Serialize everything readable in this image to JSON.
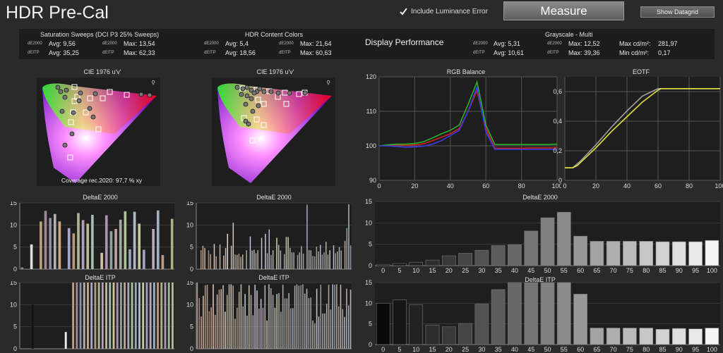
{
  "app": {
    "title": "HDR Pre-Cal"
  },
  "controls": {
    "include_luminance_label": "Include Luminance Error",
    "measure_label": "Measure",
    "show_datagrid_label": "Show Datagrid"
  },
  "stats": {
    "saturation": {
      "title": "Saturation Sweeps (DCI P3 25% Sweeps)",
      "de2000_label": "dE2000",
      "deitp_label": "dEITP",
      "avg_de2000": "Avg: 9,56",
      "max_de2000": "Max: 13,54",
      "avg_deitp": "Avg: 35,25",
      "max_deitp": "Max: 62,33"
    },
    "hdr": {
      "title": "HDR Content Colors",
      "de2000_label": "dE2000",
      "deitp_label": "dEITP",
      "avg_de2000": "Avg: 5,4",
      "max_de2000": "Max: 21,64",
      "avg_deitp": "Avg: 18,56",
      "max_deitp": "Max: 60,63"
    },
    "display_performance": "Display Performance",
    "grayscale": {
      "title": "Grayscale - Multi",
      "de2000_label": "dE2000",
      "deitp_label": "dEITP",
      "avg_de2000": "Avg: 5,31",
      "max_de2000": "Max: 12,52",
      "avg_deitp": "Avg: 10,61",
      "max_deitp": "Max: 39,36",
      "max_cdm_label": "Max cd/m²:",
      "max_cdm": "281,97",
      "min_cdm_label": "Min cd/m²:",
      "min_cdm": "0,17"
    }
  },
  "cie": {
    "title_left": "CIE 1976 u'v'",
    "title_right": "CIE 1976 u'v'",
    "coverage": "Coverage rec.2020:  97,7 % xy"
  },
  "panels": {
    "rgb_balance": "RGB Balance",
    "eotf": "EOTF",
    "deltae2000": "DeltaE 2000",
    "deltaeitp": "DeltaE ITP"
  },
  "chart_data": [
    {
      "type": "line",
      "title": "RGB Balance",
      "xlim": [
        0,
        100
      ],
      "ylim": [
        90,
        120
      ],
      "yticks": [
        90,
        100,
        110,
        120
      ],
      "xticks": [
        0,
        20,
        40,
        60,
        80,
        100
      ],
      "x": [
        0,
        5,
        10,
        15,
        20,
        25,
        30,
        35,
        40,
        45,
        50,
        55,
        60,
        65,
        70,
        75,
        80,
        85,
        90,
        95,
        100
      ],
      "series": [
        {
          "color": "#d22020",
          "values": [
            100,
            100.2,
            100.3,
            100.2,
            100.3,
            100.6,
            101.5,
            102.5,
            103.5,
            105,
            110,
            116,
            105,
            99.3,
            99.3,
            99.3,
            99.3,
            99.4,
            99.4,
            99.4,
            99.5
          ]
        },
        {
          "color": "#28b028",
          "values": [
            100,
            100.3,
            100.5,
            100.5,
            100.7,
            101.2,
            102.3,
            103.5,
            104.5,
            106,
            112,
            118.5,
            106,
            100.4,
            100.4,
            100.4,
            100.4,
            100.4,
            100.4,
            100.4,
            100.5
          ]
        },
        {
          "color": "#3a3ae6",
          "values": [
            100,
            100,
            99.8,
            99.6,
            99.7,
            99.9,
            100.5,
            101.5,
            103,
            104.5,
            110,
            117,
            104,
            99,
            99,
            99,
            99,
            99,
            99,
            99,
            99
          ]
        }
      ]
    },
    {
      "type": "line",
      "title": "EOTF",
      "xlim": [
        0,
        100
      ],
      "ylim": [
        0,
        0.7
      ],
      "yticks": [
        0,
        0.2,
        0.4,
        0.6
      ],
      "ytick_labels": [
        "0",
        "0,2",
        "0,4",
        "0,6"
      ],
      "xticks": [
        0,
        20,
        40,
        60,
        80,
        100
      ],
      "series": [
        {
          "color": "#a0a0a0",
          "x": [
            0,
            5,
            10,
            20,
            30,
            40,
            50,
            60,
            62,
            100
          ],
          "values": [
            0.085,
            0.085,
            0.13,
            0.24,
            0.36,
            0.47,
            0.57,
            0.62,
            0.62,
            0.62
          ]
        },
        {
          "color": "#e8e040",
          "x": [
            0,
            5,
            8,
            10,
            20,
            30,
            40,
            50,
            60,
            62,
            100
          ],
          "values": [
            0.085,
            0.085,
            0.1,
            0.12,
            0.22,
            0.33,
            0.43,
            0.53,
            0.61,
            0.62,
            0.62
          ]
        }
      ]
    },
    {
      "type": "bar",
      "title": "DeltaE 2000",
      "ylim": [
        0,
        15
      ],
      "yticks": [
        0,
        5,
        10,
        15
      ],
      "categories": [
        "0",
        "5",
        "10",
        "15",
        "20",
        "25",
        "30",
        "35",
        "40",
        "45",
        "50",
        "55",
        "60",
        "65",
        "70",
        "75",
        "80",
        "85",
        "90",
        "95",
        "100"
      ],
      "values": [
        0.3,
        0.5,
        0.8,
        1.3,
        2.3,
        2.9,
        3.6,
        4.7,
        4.9,
        8.1,
        11.2,
        12.5,
        6.9,
        5.7,
        5.7,
        5.7,
        5.7,
        5.6,
        5.6,
        5.6,
        5.9
      ]
    },
    {
      "type": "bar",
      "title": "DeltaE ITP",
      "ylim": [
        0,
        15
      ],
      "yticks": [
        0,
        5,
        10,
        15
      ],
      "categories": [
        "0",
        "5",
        "10",
        "15",
        "20",
        "25",
        "30",
        "35",
        "40",
        "45",
        "50",
        "55",
        "60",
        "65",
        "70",
        "75",
        "80",
        "85",
        "90",
        "95",
        "100"
      ],
      "values": [
        10,
        10.8,
        9.6,
        4.7,
        4.3,
        5.1,
        9.8,
        13.3,
        16,
        16,
        16,
        16,
        12.2,
        4,
        4,
        4,
        4,
        3.7,
        3.9,
        3.8,
        4
      ]
    },
    {
      "type": "bar",
      "title": "DeltaE 2000",
      "ylim": [
        0,
        15
      ],
      "yticks": [
        0,
        5,
        10,
        15
      ],
      "values": [
        0.4,
        0,
        5.6,
        0,
        10.8,
        13.2,
        11.6,
        12.5,
        10.8,
        0,
        9.3,
        8.1,
        12.7,
        11.1,
        10.3,
        12.3,
        0,
        3.7,
        12.2,
        8.6,
        9.1,
        11.2,
        13.1,
        4.5,
        13.0,
        10.3,
        4.4,
        0,
        9.1,
        13.3,
        3.2,
        0,
        11.4
      ],
      "colors": [
        "#888",
        "#555",
        "#ddd",
        "#555",
        "#b8a080",
        "#a08898",
        "#8890a8",
        "#b0b0b0",
        "#c8a888",
        "#555",
        "#a8a8c8",
        "#b89878",
        "#a8b890",
        "#b0a0b8",
        "#c0b890",
        "#a0c0b0",
        "#555",
        "#d0c0a0",
        "#b090b0",
        "#90a0a0",
        "#c0a0a0",
        "#a8a8a8",
        "#b0c098",
        "#98a8b8",
        "#b0b8c8",
        "#c8c8a0",
        "#a0a0c0",
        "#555",
        "#b8a8b8",
        "#a0b0c0",
        "#c09880",
        "#555",
        "#b0b080"
      ]
    },
    {
      "type": "bar",
      "title": "DeltaE ITP",
      "ylim": [
        0,
        15
      ],
      "yticks": [
        0,
        5,
        10,
        15
      ],
      "values": [
        0,
        0,
        0,
        10,
        0,
        0,
        0,
        0,
        0,
        0,
        0,
        0,
        3.8,
        0,
        15,
        15,
        15,
        15,
        15,
        15,
        15,
        15,
        15,
        15,
        15,
        15,
        15,
        15,
        15,
        15,
        15,
        15,
        15,
        15,
        15,
        15,
        15,
        15,
        15,
        15,
        15,
        15
      ],
      "colors": [
        "#555",
        "#555",
        "#555",
        "#151515",
        "#555",
        "#555",
        "#555",
        "#555",
        "#555",
        "#555",
        "#555",
        "#555",
        "#eee",
        "#555",
        "#b8a080",
        "#a08898",
        "#8890a8",
        "#b0b0b0",
        "#c8a888",
        "#a8a8c8",
        "#b89878",
        "#a8b890",
        "#b0a0b8",
        "#c0b890",
        "#a0c0b0",
        "#d0c0a0",
        "#b090b0",
        "#90a0a0",
        "#c0a0a0",
        "#a8a8a8",
        "#b0c098",
        "#98a8b8",
        "#b0b8c8",
        "#c8c8a0",
        "#a0a0c0",
        "#b8a8b8",
        "#a0b0c0",
        "#c09880",
        "#b0b080",
        "#a898b8",
        "#98b898",
        "#b8b898"
      ]
    },
    {
      "type": "bar",
      "title": "DeltaE 2000",
      "ylim": [
        0,
        15
      ],
      "yticks": [
        0,
        5,
        10,
        15
      ],
      "values": [
        0,
        0,
        4.3,
        5.3,
        4.8,
        0,
        4.3,
        3.4,
        0,
        5.7,
        2.9,
        0,
        5.6,
        0,
        3.1,
        4.8,
        8.0,
        0,
        5.3,
        10.5,
        3.3,
        3.2,
        3.5,
        2.8,
        3.3,
        0,
        4.3,
        0,
        7.4,
        4.2,
        4.4,
        3.6,
        4.3,
        0,
        7.1,
        0,
        8.0,
        3.6,
        9.0,
        3.2,
        4.3,
        0,
        7.1,
        5.5,
        4.2,
        0,
        3.4,
        7.3,
        7.3,
        4.8,
        3.8,
        3.8,
        0,
        3.2,
        3.8,
        5.2,
        3.5,
        0,
        14.6,
        4.3,
        4.3,
        3.0,
        2.9,
        5.1,
        4.0,
        5.5,
        3.3,
        3.8,
        6.2,
        3.3,
        4.3,
        0,
        5.4,
        3.6,
        4.0,
        5.0,
        4.2,
        0,
        6.4,
        9.3,
        14.7,
        5.4
      ],
      "colors": [
        "#888",
        "#888",
        "#b89080",
        "#c8a888",
        "#d8b898",
        "#888",
        "#a08870",
        "#c0a088",
        "#888",
        "#e0c8b8",
        "#b8a090",
        "#888",
        "#c8b0a0",
        "#888",
        "#d0b8a8",
        "#c8b8b0",
        "#e8d8c8",
        "#888",
        "#c0c0a8",
        "#d0c8c0",
        "#b0a898",
        "#c0b098",
        "#a89888",
        "#b8a898",
        "#c8b8a8",
        "#888",
        "#a8a898",
        "#888",
        "#c0c8e0",
        "#b8b8a8",
        "#c8b8b0",
        "#a8a8a8",
        "#b8a8a8",
        "#888",
        "#c8c0d8",
        "#888",
        "#d0c8d8",
        "#a8a0a8",
        "#c0b8d0",
        "#a898a8",
        "#b8b0b0",
        "#888",
        "#d8d0b8",
        "#b8b8a8",
        "#a8a8b8",
        "#888",
        "#a8a0a0",
        "#c8c0b8",
        "#b8d0b8",
        "#b0b0a0",
        "#a8a898",
        "#a8a8a8",
        "#888",
        "#989898",
        "#a8a8a8",
        "#b0a8a0",
        "#a0a0a0",
        "#888",
        "#a8b0c8",
        "#a8a8a8",
        "#b0a8a8",
        "#989898",
        "#909090",
        "#a0a098",
        "#a8a8a0",
        "#b8b8c8",
        "#989898",
        "#a0a0a0",
        "#b8b0a8",
        "#a8a0a0",
        "#c8c0c0",
        "#888",
        "#c0b8d8",
        "#989898",
        "#a0a8a0",
        "#b0b0b0",
        "#a8a8a8",
        "#888",
        "#b0a898",
        "#a898a0",
        "#a8b8c8",
        "#9098a8"
      ]
    },
    {
      "type": "bar",
      "title": "DeltaE ITP",
      "ylim": [
        0,
        15
      ],
      "yticks": [
        0,
        5,
        10,
        15
      ],
      "values": [
        15,
        11.5,
        7.3,
        12.0,
        14.4,
        14.5,
        8.5,
        9.4,
        14.6,
        7.7,
        12.3,
        13.4,
        13.5,
        14.4,
        8.4,
        12.2,
        14.6,
        14.6,
        14.3,
        6.8,
        9.3,
        12.9,
        14.6,
        9.6,
        12.4,
        7.5,
        14.4,
        12.2,
        7.6,
        14.5,
        13.2,
        9.1,
        11.3,
        9.3,
        14.4,
        6.4,
        14.6,
        13.7,
        12.2,
        9.3,
        12.4,
        12.6,
        8.4,
        14.5,
        11.4,
        11.4,
        12.6,
        9.2,
        9.2,
        14.3,
        14.6,
        14.3,
        14.4,
        14.6,
        12.5,
        13.6,
        11.5,
        11.6,
        6.4,
        5.8,
        13.6,
        7.3,
        14.5,
        8.0,
        8.0,
        10.2,
        14.5,
        8.9,
        14.6,
        14.5,
        14.6,
        9.6,
        14.5,
        9.0,
        7.2,
        13.6,
        9.8,
        13.4
      ],
      "colors": [
        "#b89080",
        "#a08878",
        "#c8a888",
        "#d8b898",
        "#a89880",
        "#b8a090",
        "#a08870",
        "#c0a088",
        "#e0c8b8",
        "#b8a090",
        "#c8b0a0",
        "#a89890",
        "#d0b8a8",
        "#c8b8b0",
        "#e8d8c8",
        "#b0a898",
        "#c0b098",
        "#d0c8c0",
        "#b0a898",
        "#c0b098",
        "#a89888",
        "#b8a898",
        "#c8b8a8",
        "#a8a898",
        "#c0c8e0",
        "#b8b8a8",
        "#c8b8b0",
        "#a8a8a8",
        "#b8a8a8",
        "#c8c0d8",
        "#d0c8d8",
        "#a8a0a8",
        "#c0b8d0",
        "#a898a8",
        "#b8b0b0",
        "#d8d0b8",
        "#b8b8a8",
        "#a8a8b8",
        "#a8a0a0",
        "#c8c0b8",
        "#b8d0b8",
        "#b0b0a0",
        "#a8a898",
        "#a8a8a8",
        "#989898",
        "#a8a8a8",
        "#b0a8a0",
        "#a0a0a0",
        "#a8b0c8",
        "#a8a8a8",
        "#b0a8a8",
        "#989898",
        "#909090",
        "#a0a098",
        "#a8a8a0",
        "#b8b8c8",
        "#989898",
        "#a0a0a0",
        "#b8b0a8",
        "#a8a0a0",
        "#c8c0c0",
        "#c0b8d8",
        "#989898",
        "#a0a8a0",
        "#b0b0b0",
        "#a8a8a8",
        "#b0a898",
        "#a898a0",
        "#a8b8c8",
        "#9098a8",
        "#b8a8a0",
        "#a8a098",
        "#c0b8b0",
        "#a8a0a8",
        "#b0b8c0",
        "#c0a8b0",
        "#a0b0b8",
        "#b8b8b0"
      ]
    }
  ]
}
